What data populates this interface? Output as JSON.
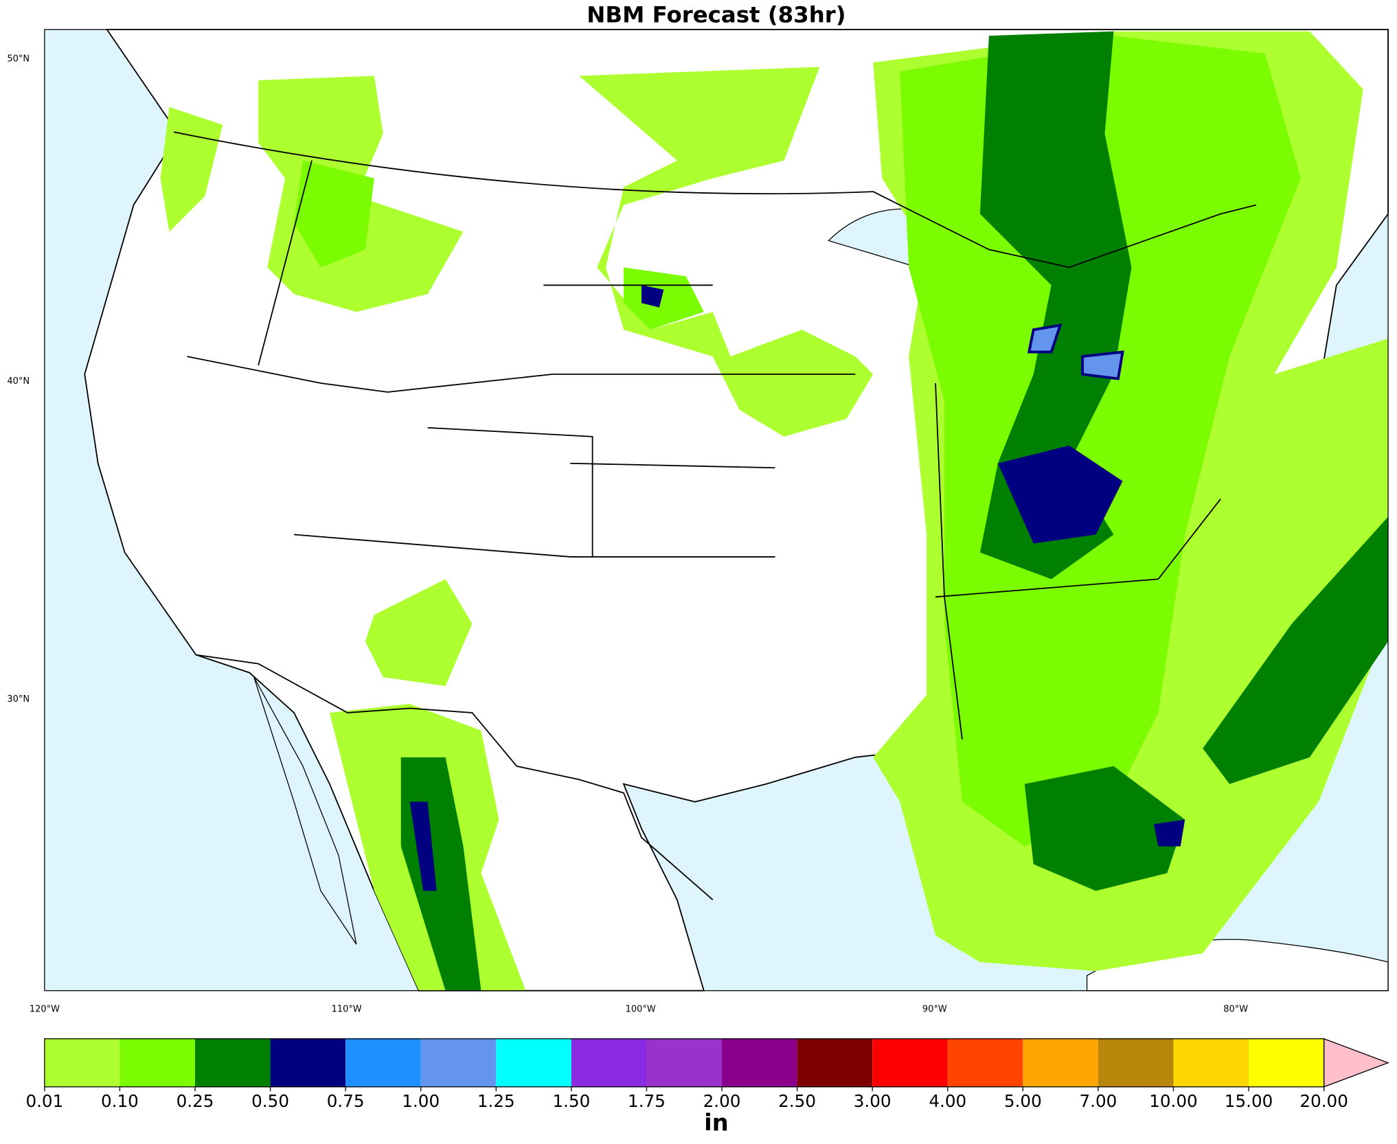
{
  "title": "NBM Forecast (83hr)",
  "map": {
    "lat_labels": [
      "50°N",
      "40°N",
      "30°N"
    ],
    "lon_labels": [
      "120°W",
      "110°W",
      "100°W",
      "90°W",
      "80°W"
    ]
  },
  "colorbar": {
    "ticks": [
      {
        "value": 0.01,
        "label": "0.01"
      },
      {
        "value": 0.1,
        "label": "0.10"
      },
      {
        "value": 0.25,
        "label": "0.25"
      },
      {
        "value": 0.5,
        "label": "0.50"
      },
      {
        "value": 0.75,
        "label": "0.75"
      },
      {
        "value": 1,
        "label": "1.00"
      },
      {
        "value": 1.25,
        "label": "1.25"
      },
      {
        "value": 1.5,
        "label": "1.50"
      },
      {
        "value": 1.75,
        "label": "1.75"
      },
      {
        "value": 2,
        "label": "2.00"
      },
      {
        "value": 2.5,
        "label": "2.50"
      },
      {
        "value": 3,
        "label": "3.00"
      },
      {
        "value": 4,
        "label": "4.00"
      },
      {
        "value": 5,
        "label": "5.00"
      },
      {
        "value": 7,
        "label": "7.00"
      },
      {
        "value": 10,
        "label": "10.00"
      },
      {
        "value": 15,
        "label": "15.00"
      },
      {
        "value": 20,
        "label": "20.00"
      }
    ],
    "colors": [
      "#adff2f",
      "#7cfc00",
      "#008000",
      "#000080",
      "#1e90ff",
      "#6495ed",
      "#00ffff",
      "#8a2be2",
      "#9932cc",
      "#8b008b",
      "#800000",
      "#ff0000",
      "#ff4500",
      "#ffa500",
      "#b8860b",
      "#ffd700",
      "#ffff00"
    ],
    "extend_color": "#ffc0cb",
    "label": "in"
  }
}
